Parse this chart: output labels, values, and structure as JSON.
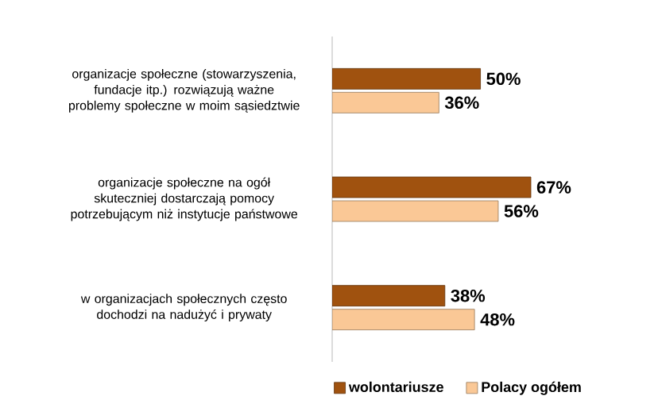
{
  "chart_data": {
    "type": "bar",
    "orientation": "horizontal",
    "categories": [
      "organizacje społeczne (stowarzyszenia, fundacje itp.) rozwiązują ważne problemy społeczne w moim sąsiedztwie",
      "organizacje społeczne na ogół skuteczniej dostarczają pomocy potrzebującym niż instytucje państwowe",
      "w organizacjach społecznych często dochodzi na nadużyć i prywaty"
    ],
    "series": [
      {
        "name": "wolontariusze",
        "color": "#a0520f",
        "values": [
          50,
          67,
          38
        ],
        "value_labels": [
          "50%",
          "67%",
          "38%"
        ]
      },
      {
        "name": "Polacy ogółem",
        "color": "#fac896",
        "values": [
          36,
          56,
          48
        ],
        "value_labels": [
          "36%",
          "56%",
          "48%"
        ]
      }
    ],
    "legend": "bottom"
  }
}
